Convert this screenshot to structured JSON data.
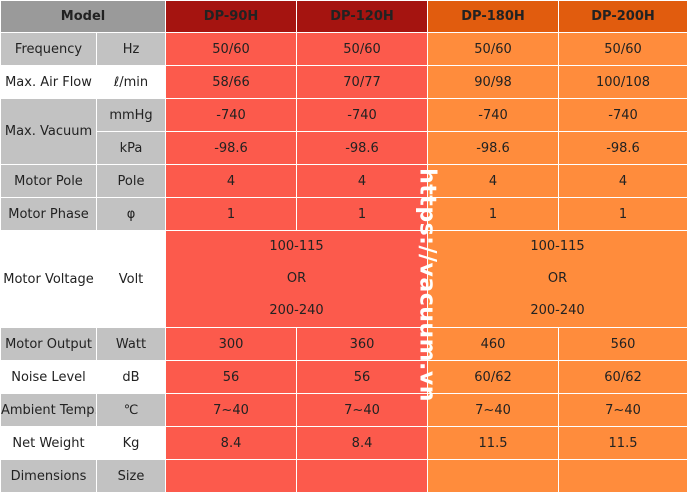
{
  "header": {
    "model": "Model",
    "columns": [
      "DP-90H",
      "DP-120H",
      "DP-180H",
      "DP-200H"
    ]
  },
  "rows": {
    "frequency": {
      "label": "Frequency",
      "unit": "Hz",
      "values": [
        "50/60",
        "50/60",
        "50/60",
        "50/60"
      ]
    },
    "air_flow": {
      "label": "Max. Air Flow",
      "unit": "ℓ/min",
      "values": [
        "58/66",
        "70/77",
        "90/98",
        "100/108"
      ]
    },
    "vacuum": {
      "label": "Max. Vacuum",
      "mmhg": {
        "unit": "mmHg",
        "values": [
          "-740",
          "-740",
          "-740",
          "-740"
        ]
      },
      "kpa": {
        "unit": "kPa",
        "values": [
          "-98.6",
          "-98.6",
          "-98.6",
          "-98.6"
        ]
      }
    },
    "motor_pole": {
      "label": "Motor Pole",
      "unit": "Pole",
      "values": [
        "4",
        "4",
        "4",
        "4"
      ]
    },
    "motor_phase": {
      "label": "Motor Phase",
      "unit": "φ",
      "values": [
        "1",
        "1",
        "1",
        "1"
      ]
    },
    "motor_voltage": {
      "label": "Motor Voltage",
      "unit": "Volt",
      "left": [
        "100-115",
        "OR",
        "200-240"
      ],
      "right": [
        "100-115",
        "OR",
        "200-240"
      ]
    },
    "motor_output": {
      "label": "Motor Output",
      "unit": "Watt",
      "values": [
        "300",
        "360",
        "460",
        "560"
      ]
    },
    "noise": {
      "label": "Noise Level",
      "unit": "dB",
      "values": [
        "56",
        "56",
        "60/62",
        "60/62"
      ]
    },
    "ambient": {
      "label": "Ambient Temp.",
      "unit": "℃",
      "values": [
        "7~40",
        "7~40",
        "7~40",
        "7~40"
      ]
    },
    "weight": {
      "label": "Net Weight",
      "unit": "Kg",
      "values": [
        "8.4",
        "8.4",
        "11.5",
        "11.5"
      ]
    },
    "dimensions": {
      "label": "Dimensions",
      "unit": "Size",
      "values": [
        "",
        "",
        "",
        ""
      ]
    }
  },
  "watermark": "https://vacuum.vn",
  "colors": {
    "header_gray": "#9a9a9a",
    "header_red": "#a51410",
    "header_orange": "#e15c0e",
    "cell_red": "#fc5a4c",
    "cell_orange": "#ff8c3c",
    "label_gray": "#c2c2c2"
  }
}
